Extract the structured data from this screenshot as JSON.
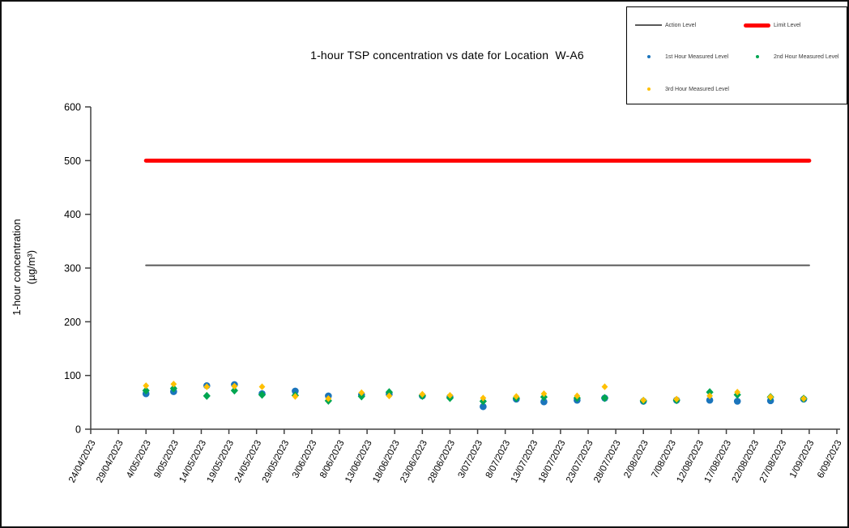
{
  "title": "1-hour TSP concentration vs date for Location  W-A6",
  "y_axis": {
    "label_line1": "1-hour concentration",
    "label_line2": "(µg/m³)",
    "min": 0,
    "max": 600,
    "tick_step": 100,
    "tick_labels": [
      "0",
      "100",
      "200",
      "300",
      "400",
      "500",
      "600"
    ]
  },
  "x_axis": {
    "start": "24/04/2023",
    "end": "6/09/2023",
    "tick_labels": [
      "24/04/2023",
      "29/04/2023",
      "4/05/2023",
      "9/05/2023",
      "14/05/2023",
      "19/05/2023",
      "24/05/2023",
      "29/05/2023",
      "3/06/2023",
      "8/06/2023",
      "13/06/2023",
      "18/06/2023",
      "23/06/2023",
      "28/06/2023",
      "3/07/2023",
      "8/07/2023",
      "13/07/2023",
      "18/07/2023",
      "23/07/2023",
      "28/07/2023",
      "2/08/2023",
      "7/08/2023",
      "12/08/2023",
      "17/08/2023",
      "22/08/2023",
      "27/08/2023",
      "1/09/2023",
      "6/09/2023"
    ]
  },
  "legend": {
    "action_label": "Action Level",
    "limit_label": "Limit Level",
    "first_label": "1st Hour Measured Level",
    "second_label": "2nd Hour Measured Level",
    "third_label": "3rd Hour Measured Level"
  },
  "colors": {
    "action": "#595959",
    "limit": "#FF0000",
    "first": "#1B75BC",
    "second": "#00A651",
    "third": "#FFC000",
    "axis": "#404040"
  },
  "chart_data": {
    "type": "scatter",
    "title": "1-hour TSP concentration vs date for Location  W-A6",
    "xlabel": "",
    "ylabel": "1-hour concentration (µg/m³)",
    "ylim": [
      0,
      600
    ],
    "grid": false,
    "legend_position": "top-right",
    "x": [
      "4/05/2023",
      "9/05/2023",
      "15/05/2023",
      "20/05/2023",
      "25/05/2023",
      "31/05/2023",
      "6/06/2023",
      "12/06/2023",
      "17/06/2023",
      "23/06/2023",
      "28/06/2023",
      "4/07/2023",
      "10/07/2023",
      "15/07/2023",
      "21/07/2023",
      "26/07/2023",
      "2/08/2023",
      "8/08/2023",
      "14/08/2023",
      "19/08/2023",
      "25/08/2023",
      "31/08/2023"
    ],
    "series": [
      {
        "name": "1st Hour Measured Level",
        "marker": "circle",
        "color": "#1B75BC",
        "values": [
          66,
          70,
          81,
          83,
          66,
          71,
          62,
          64,
          65,
          62,
          60,
          42,
          56,
          51,
          54,
          58,
          52,
          54,
          54,
          52,
          53,
          56
        ]
      },
      {
        "name": "2nd Hour Measured Level",
        "marker": "diamond",
        "color": "#00A651",
        "values": [
          72,
          76,
          62,
          72,
          64,
          63,
          53,
          61,
          69,
          62,
          58,
          52,
          58,
          60,
          58,
          58,
          53,
          54,
          69,
          64,
          60,
          57
        ]
      },
      {
        "name": "3rd Hour Measured Level",
        "marker": "diamond",
        "color": "#FFC000",
        "values": [
          81,
          84,
          79,
          80,
          79,
          61,
          57,
          68,
          62,
          65,
          63,
          58,
          61,
          66,
          62,
          79,
          54,
          56,
          62,
          69,
          60,
          57
        ]
      }
    ],
    "reference_lines": [
      {
        "name": "Action Level",
        "value": 305,
        "color": "#595959",
        "thickness": 2,
        "span": [
          "4/05/2023",
          "1/09/2023"
        ]
      },
      {
        "name": "Limit Level",
        "value": 500,
        "color": "#FF0000",
        "thickness": 5,
        "span": [
          "4/05/2023",
          "1/09/2023"
        ]
      }
    ]
  }
}
